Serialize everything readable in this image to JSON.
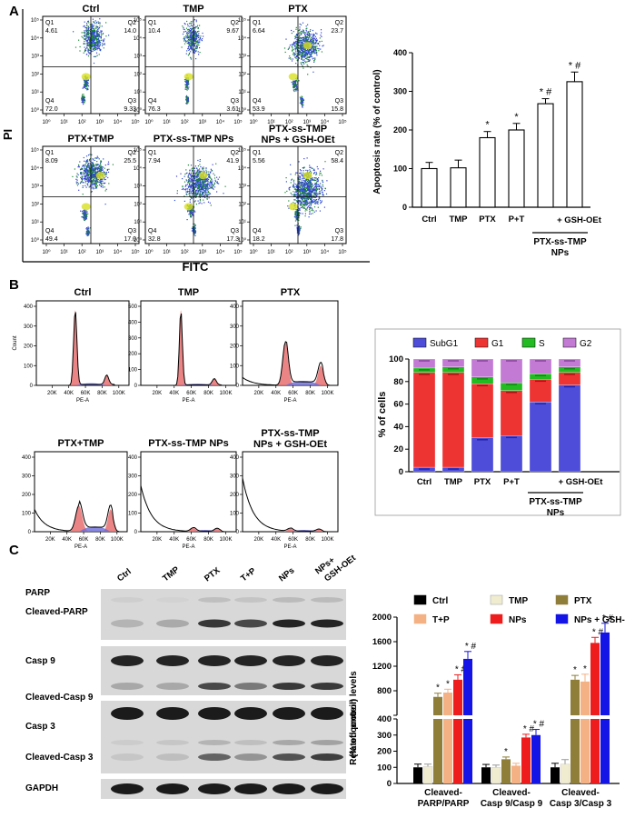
{
  "panel_labels": [
    "A",
    "B",
    "C"
  ],
  "panel_a": {
    "y_axis_label": "PI",
    "x_axis_label": "FITC",
    "plots": [
      {
        "title": "Ctrl",
        "q1": "4.61",
        "q2": "14.0",
        "q3": "9.33",
        "q4": "72.0"
      },
      {
        "title": "TMP",
        "q1": "10.4",
        "q2": "9.67",
        "q3": "3.61",
        "q4": "76.3"
      },
      {
        "title": "PTX",
        "q1": "6.64",
        "q2": "23.7",
        "q3": "15.8",
        "q4": "53.9"
      },
      {
        "title": "PTX+TMP",
        "q1": "8.09",
        "q2": "25.5",
        "q3": "17.0",
        "q4": "49.4"
      },
      {
        "title": "PTX-ss-TMP NPs",
        "q1": "7.94",
        "q2": "41.9",
        "q3": "17.3",
        "q4": "32.8"
      },
      {
        "title": "PTX-ss-TMP\nNPs + GSH-OEt",
        "q1": "5.56",
        "q2": "58.4",
        "q3": "17.8",
        "q4": "18.2"
      }
    ],
    "quadrant_names": [
      "Q1",
      "Q2",
      "Q3",
      "Q4"
    ],
    "decade_ticks": [
      "10⁰",
      "10¹",
      "10²",
      "10³",
      "10⁴",
      "10⁵"
    ]
  },
  "panel_b": {
    "plots": [
      {
        "title": "Ctrl",
        "y_ticks": [
          "0",
          "100",
          "200",
          "300",
          "400"
        ],
        "y_label": "Count"
      },
      {
        "title": "TMP",
        "y_ticks": [
          "0",
          "100",
          "200",
          "300",
          "400",
          "500"
        ]
      },
      {
        "title": "PTX",
        "y_ticks": [
          "0",
          "100",
          "200",
          "300",
          "400"
        ]
      },
      {
        "title": "PTX+TMP",
        "y_ticks": [
          "0",
          "100",
          "200",
          "300",
          "400"
        ]
      },
      {
        "title": "PTX-ss-TMP NPs",
        "y_ticks": [
          "0",
          "100",
          "200",
          "300",
          "400"
        ]
      },
      {
        "title": "PTX-ss-TMP\nNPs + GSH-OEt",
        "y_ticks": [
          "0",
          "100",
          "200",
          "300",
          "400"
        ]
      }
    ],
    "x_ticks": [
      "20K",
      "40K",
      "60K",
      "80K",
      "100K"
    ],
    "x_label": "PE-A"
  },
  "panel_c": {
    "lane_labels": [
      "Ctrl",
      "TMP",
      "PTX",
      "T+P",
      "NPs",
      "NPs+\nGSH-OEt"
    ],
    "blot_labels": [
      "PARP",
      "Cleaved-PARP",
      "Casp 9",
      "Cleaved-Casp 9",
      "Casp 3",
      "Cleaved-Casp 3",
      "GAPDH"
    ]
  },
  "chart_data": [
    {
      "type": "bar",
      "title": "",
      "ylabel": "Apoptosis rate (% of control)",
      "categories": [
        "Ctrl",
        "TMP",
        "PTX",
        "P+T",
        "PTX-ss-TMP NPs",
        "PTX-ss-TMP NPs + GSH-OEt"
      ],
      "x_tick_labels": [
        "Ctrl",
        "TMP",
        "PTX",
        "P+T",
        "",
        ""
      ],
      "group_label": "PTX-ss-TMP\nNPs",
      "group_sub_label": "+ GSH-OEt",
      "values": [
        100,
        102,
        180,
        200,
        268,
        325
      ],
      "errors": [
        16,
        20,
        16,
        17,
        13,
        25
      ],
      "annotations": [
        "",
        "",
        "*",
        "*",
        "* #",
        "* #"
      ],
      "ylim": [
        0,
        400
      ],
      "yticks": [
        0,
        100,
        200,
        300,
        400
      ]
    },
    {
      "type": "stacked-bar",
      "ylabel": "% of cells",
      "categories": [
        "Ctrl",
        "TMP",
        "PTX",
        "P+T",
        "PTX-ss-TMP NPs",
        "PTX-ss-TMP NPs + GSH-OEt"
      ],
      "x_tick_labels": [
        "Ctrl",
        "TMP",
        "PTX",
        "P+T",
        "",
        ""
      ],
      "group_label": "PTX-ss-TMP\nNPs",
      "group_sub_label": "+ GSH-OEt",
      "series": [
        {
          "name": "SubG1",
          "color": "#4d4dd9",
          "values": [
            4,
            4,
            30,
            32,
            62,
            77
          ]
        },
        {
          "name": "G1",
          "color": "#ee3333",
          "values": [
            84,
            84,
            48,
            40,
            20,
            11
          ]
        },
        {
          "name": "S",
          "color": "#22bb22",
          "values": [
            4,
            5,
            6,
            7,
            5,
            5
          ]
        },
        {
          "name": "G2",
          "color": "#c27ad4",
          "values": [
            8,
            7,
            16,
            21,
            13,
            7
          ]
        }
      ],
      "ylim": [
        0,
        100
      ],
      "yticks": [
        0,
        20,
        40,
        60,
        80,
        100
      ]
    },
    {
      "type": "grouped-bar",
      "ylabel": "Related protein levels\n(% of control)",
      "groups": [
        "Cleaved-\nPARP/PARP",
        "Cleaved-\nCasp 9/Casp 9",
        "Cleaved-\nCasp 3/Casp 3"
      ],
      "series": [
        {
          "name": "Ctrl",
          "color": "#000000",
          "values": [
            100,
            100,
            100
          ],
          "errors": [
            20,
            18,
            25
          ],
          "marks": [
            "",
            "",
            ""
          ]
        },
        {
          "name": "TMP",
          "color": "#f0ecd0",
          "values": [
            105,
            100,
            120
          ],
          "errors": [
            15,
            14,
            28
          ],
          "marks": [
            "",
            "",
            ""
          ]
        },
        {
          "name": "PTX",
          "color": "#8f7d3a",
          "values": [
            700,
            150,
            980
          ],
          "errors": [
            60,
            14,
            70
          ],
          "marks": [
            "*",
            "*",
            "*"
          ]
        },
        {
          "name": "T+P",
          "color": "#f4b183",
          "values": [
            770,
            110,
            950
          ],
          "errors": [
            55,
            15,
            120
          ],
          "marks": [
            "*",
            "",
            "*"
          ]
        },
        {
          "name": "NPs",
          "color": "#ee1c1c",
          "values": [
            980,
            285,
            1580
          ],
          "errors": [
            80,
            20,
            90
          ],
          "marks": [
            "* #",
            "* #",
            "* #"
          ]
        },
        {
          "name": "NPs + GSH-OEt",
          "color": "#1414e6",
          "values": [
            1320,
            300,
            1750
          ],
          "errors": [
            120,
            35,
            150
          ],
          "marks": [
            "* #",
            "* #",
            "* #"
          ]
        }
      ],
      "axis_break": {
        "lower": [
          0,
          400
        ],
        "upper": [
          400,
          2000
        ]
      },
      "lower_yticks": [
        0,
        100,
        200,
        300,
        400
      ],
      "upper_yticks": [
        400,
        800,
        1200,
        1600,
        2000
      ],
      "upper_tick_labels": [
        "",
        "800",
        "1200",
        "1600",
        "2000"
      ]
    }
  ]
}
